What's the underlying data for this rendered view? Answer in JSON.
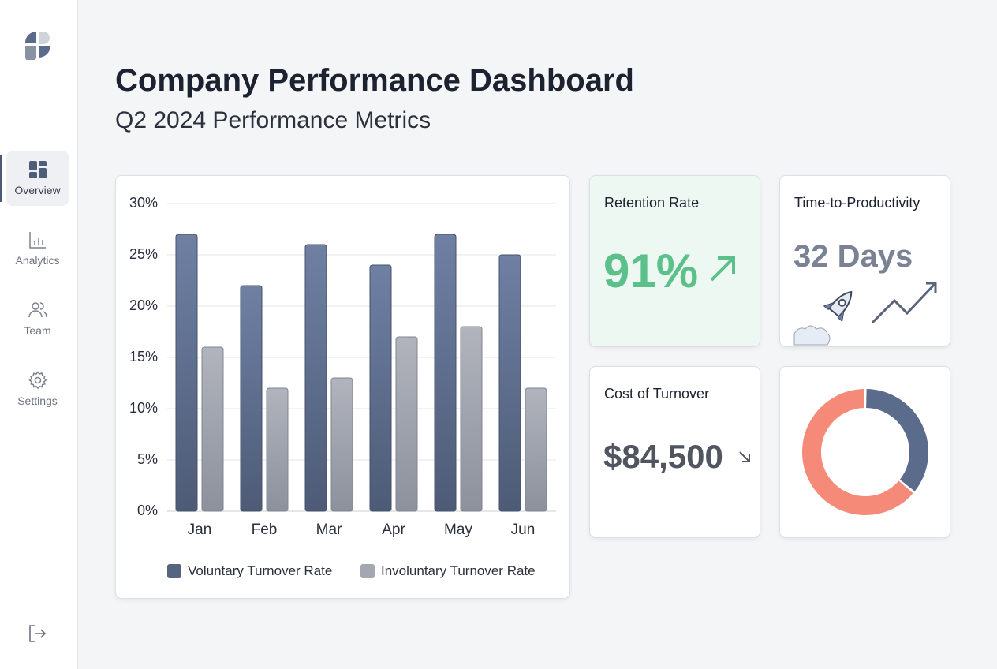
{
  "sidebar": {
    "items": [
      {
        "label": "Overview",
        "icon": "grid-icon"
      },
      {
        "label": "Analytics",
        "icon": "bar-chart-icon"
      },
      {
        "label": "Team",
        "icon": "users-icon"
      },
      {
        "label": "Settings",
        "icon": "gear-icon"
      }
    ],
    "logout_icon": "logout-icon"
  },
  "header": {
    "title": "Company Performance Dashboard",
    "subtitle": "Q2 2024 Performance Metrics"
  },
  "chart_data": {
    "type": "bar",
    "categories": [
      "Jan",
      "Feb",
      "Mar",
      "Apr",
      "May",
      "Jun"
    ],
    "series": [
      {
        "name": "Voluntary Turnover Rate",
        "color": "#5a6b8c",
        "values": [
          27,
          22,
          26,
          24,
          27,
          25
        ]
      },
      {
        "name": "Involuntary Turnover Rate",
        "color": "#a3a7b1",
        "values": [
          16,
          12,
          13,
          17,
          18,
          12
        ]
      }
    ],
    "yticks": [
      "0%",
      "5%",
      "10%",
      "15%",
      "20%",
      "25%",
      "30%"
    ],
    "ylim": [
      0,
      30
    ],
    "grid": true,
    "legend": "bottom"
  },
  "cards": {
    "retention": {
      "title": "Retention Rate",
      "value": "91%",
      "trend": "up",
      "color": "#5cc08a"
    },
    "productivity": {
      "title": "Time-to-Productivity",
      "value": "32 Days"
    },
    "cost": {
      "title": "Cost of Turnover",
      "value": "$84,500",
      "trend": "down"
    },
    "donut": {
      "segments": [
        {
          "value": 36,
          "color": "#5a6b8c"
        },
        {
          "value": 64,
          "color": "#f58a78"
        }
      ]
    }
  }
}
